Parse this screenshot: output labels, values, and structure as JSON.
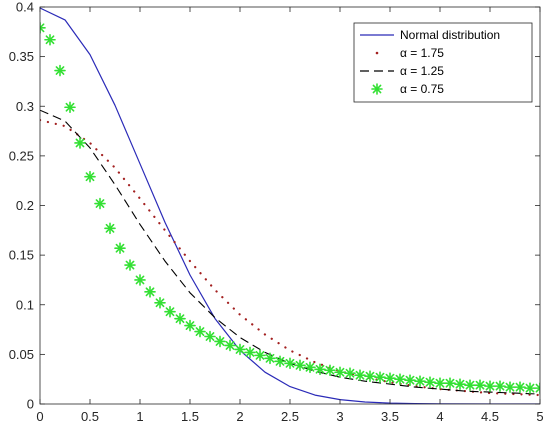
{
  "chart_data": {
    "type": "line",
    "title": "",
    "xlabel": "",
    "ylabel": "",
    "xlim": [
      0,
      5
    ],
    "ylim": [
      0,
      0.4
    ],
    "x_ticks": [
      "0",
      "0.5",
      "1",
      "1.5",
      "2",
      "2.5",
      "3",
      "3.5",
      "4",
      "4.5",
      "5"
    ],
    "y_ticks": [
      "0",
      "0.05",
      "0.1",
      "0.15",
      "0.2",
      "0.25",
      "0.3",
      "0.35",
      "0.4"
    ],
    "grid": false,
    "legend_position": "top-right",
    "series": [
      {
        "name": "Normal distribution",
        "style": "solid",
        "color": "#2b2bb8",
        "x": [
          0,
          0.25,
          0.5,
          0.75,
          1,
          1.25,
          1.5,
          1.75,
          2,
          2.25,
          2.5,
          2.75,
          3,
          3.25,
          3.5,
          3.75,
          4,
          4.5,
          5
        ],
        "y": [
          0.399,
          0.387,
          0.352,
          0.301,
          0.242,
          0.183,
          0.13,
          0.086,
          0.054,
          0.032,
          0.0175,
          0.009,
          0.0044,
          0.002,
          0.0009,
          0.0004,
          0.0001,
          0.0,
          0.0
        ]
      },
      {
        "name": "α = 1.75",
        "style": "dotted",
        "color": "#a32020",
        "x": [
          0,
          0.25,
          0.5,
          0.75,
          1,
          1.25,
          1.5,
          1.75,
          2,
          2.25,
          2.5,
          2.75,
          3,
          3.25,
          3.5,
          3.75,
          4,
          4.25,
          4.5,
          4.75,
          5
        ],
        "y": [
          0.286,
          0.28,
          0.263,
          0.238,
          0.207,
          0.175,
          0.144,
          0.115,
          0.09,
          0.07,
          0.054,
          0.042,
          0.033,
          0.027,
          0.022,
          0.018,
          0.015,
          0.013,
          0.011,
          0.01,
          0.009
        ]
      },
      {
        "name": "α = 1.25",
        "style": "dashed",
        "color": "#000000",
        "x": [
          0,
          0.25,
          0.5,
          0.75,
          1,
          1.25,
          1.5,
          1.75,
          2,
          2.25,
          2.5,
          2.75,
          3,
          3.25,
          3.5,
          3.75,
          4,
          4.25,
          4.5,
          4.75,
          5
        ],
        "y": [
          0.296,
          0.285,
          0.258,
          0.221,
          0.181,
          0.144,
          0.112,
          0.087,
          0.067,
          0.052,
          0.041,
          0.033,
          0.027,
          0.023,
          0.02,
          0.017,
          0.015,
          0.013,
          0.012,
          0.011,
          0.01
        ]
      },
      {
        "name": "α = 0.75",
        "style": "markers",
        "color": "#33e033",
        "x": [
          0,
          0.1,
          0.2,
          0.3,
          0.4,
          0.5,
          0.6,
          0.7,
          0.8,
          0.9,
          1.0,
          1.1,
          1.2,
          1.3,
          1.4,
          1.5,
          1.6,
          1.7,
          1.8,
          1.9,
          2.0,
          2.1,
          2.2,
          2.3,
          2.4,
          2.5,
          2.6,
          2.7,
          2.8,
          2.9,
          3.0,
          3.1,
          3.2,
          3.3,
          3.4,
          3.5,
          3.6,
          3.7,
          3.8,
          3.9,
          4.0,
          4.1,
          4.2,
          4.3,
          4.4,
          4.5,
          4.6,
          4.7,
          4.8,
          4.9,
          5.0
        ],
        "y": [
          0.379,
          0.367,
          0.336,
          0.299,
          0.263,
          0.229,
          0.202,
          0.177,
          0.157,
          0.14,
          0.125,
          0.113,
          0.102,
          0.093,
          0.086,
          0.079,
          0.073,
          0.068,
          0.063,
          0.059,
          0.055,
          0.052,
          0.049,
          0.046,
          0.043,
          0.041,
          0.039,
          0.037,
          0.035,
          0.034,
          0.032,
          0.031,
          0.029,
          0.028,
          0.027,
          0.026,
          0.025,
          0.024,
          0.023,
          0.022,
          0.021,
          0.021,
          0.02,
          0.019,
          0.019,
          0.018,
          0.018,
          0.017,
          0.017,
          0.016,
          0.016
        ]
      }
    ]
  }
}
